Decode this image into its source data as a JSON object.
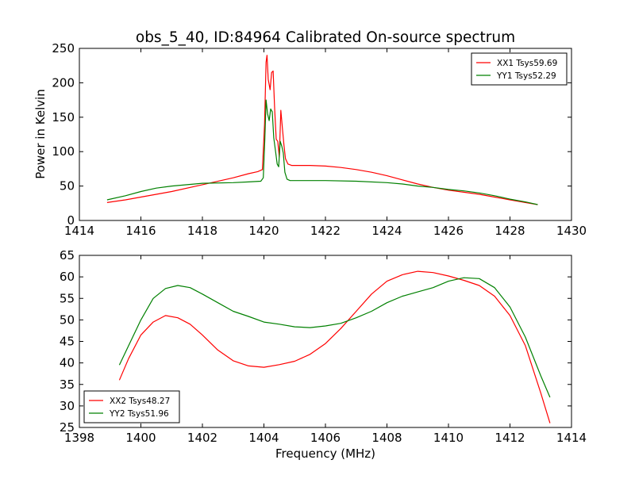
{
  "figure": {
    "title": "obs_5_40, ID:84964 Calibrated On-source spectrum",
    "xlabel": "Frequency (MHz)"
  },
  "chart_data": [
    {
      "type": "line",
      "ylabel": "Power in Kelvin",
      "xlim": [
        1414,
        1430
      ],
      "ylim": [
        0,
        250
      ],
      "xticks": [
        "1414",
        "1416",
        "1418",
        "1420",
        "1422",
        "1424",
        "1426",
        "1428",
        "1430"
      ],
      "yticks": [
        "0",
        "50",
        "100",
        "150",
        "200",
        "250"
      ],
      "legend_position": "top-right",
      "series": [
        {
          "name": "XX1 Tsys59.69",
          "color": "#ff0000",
          "points": [
            [
              1414.9,
              26
            ],
            [
              1415.5,
              30
            ],
            [
              1416,
              34
            ],
            [
              1417,
              42
            ],
            [
              1418,
              52
            ],
            [
              1419,
              62
            ],
            [
              1419.5,
              68
            ],
            [
              1419.8,
              71
            ],
            [
              1419.95,
              74
            ],
            [
              1420.02,
              140
            ],
            [
              1420.07,
              230
            ],
            [
              1420.1,
              240
            ],
            [
              1420.14,
              205
            ],
            [
              1420.2,
              190
            ],
            [
              1420.25,
              215
            ],
            [
              1420.3,
              217
            ],
            [
              1420.35,
              160
            ],
            [
              1420.4,
              118
            ],
            [
              1420.45,
              115
            ],
            [
              1420.5,
              92
            ],
            [
              1420.55,
              160
            ],
            [
              1420.6,
              135
            ],
            [
              1420.65,
              110
            ],
            [
              1420.7,
              90
            ],
            [
              1420.78,
              82
            ],
            [
              1420.9,
              80
            ],
            [
              1421.5,
              80
            ],
            [
              1422,
              79
            ],
            [
              1422.5,
              77
            ],
            [
              1423,
              74
            ],
            [
              1423.5,
              70
            ],
            [
              1424,
              65
            ],
            [
              1424.5,
              59
            ],
            [
              1425,
              53
            ],
            [
              1425.5,
              48
            ],
            [
              1426,
              44
            ],
            [
              1426.5,
              41
            ],
            [
              1427,
              38
            ],
            [
              1427.5,
              34
            ],
            [
              1428,
              30
            ],
            [
              1428.5,
              26
            ],
            [
              1428.9,
              23
            ]
          ]
        },
        {
          "name": "YY1 Tsys52.29",
          "color": "#008000",
          "points": [
            [
              1414.9,
              30
            ],
            [
              1415.5,
              36
            ],
            [
              1416,
              42
            ],
            [
              1416.5,
              47
            ],
            [
              1417,
              50
            ],
            [
              1417.5,
              52
            ],
            [
              1418,
              54
            ],
            [
              1419,
              55
            ],
            [
              1419.5,
              56
            ],
            [
              1419.9,
              57
            ],
            [
              1419.98,
              62
            ],
            [
              1420.03,
              120
            ],
            [
              1420.07,
              175
            ],
            [
              1420.12,
              155
            ],
            [
              1420.17,
              145
            ],
            [
              1420.22,
              162
            ],
            [
              1420.27,
              158
            ],
            [
              1420.32,
              120
            ],
            [
              1420.38,
              100
            ],
            [
              1420.43,
              82
            ],
            [
              1420.48,
              78
            ],
            [
              1420.53,
              115
            ],
            [
              1420.58,
              108
            ],
            [
              1420.63,
              98
            ],
            [
              1420.68,
              70
            ],
            [
              1420.75,
              60
            ],
            [
              1420.85,
              58
            ],
            [
              1421.5,
              58
            ],
            [
              1422,
              58
            ],
            [
              1423,
              57
            ],
            [
              1424,
              55
            ],
            [
              1424.5,
              53
            ],
            [
              1425,
              50
            ],
            [
              1425.5,
              48
            ],
            [
              1426,
              45
            ],
            [
              1426.5,
              43
            ],
            [
              1427,
              40
            ],
            [
              1427.5,
              36
            ],
            [
              1428,
              31
            ],
            [
              1428.5,
              27
            ],
            [
              1428.9,
              23
            ]
          ]
        }
      ]
    },
    {
      "type": "line",
      "ylabel": "",
      "xlim": [
        1398,
        1414
      ],
      "ylim": [
        25,
        65
      ],
      "xticks": [
        "1398",
        "1400",
        "1402",
        "1404",
        "1406",
        "1408",
        "1410",
        "1412",
        "1414"
      ],
      "yticks": [
        "25",
        "30",
        "35",
        "40",
        "45",
        "50",
        "55",
        "60",
        "65"
      ],
      "legend_position": "bottom-left",
      "series": [
        {
          "name": "XX2 Tsys48.27",
          "color": "#ff0000",
          "points": [
            [
              1399.3,
              36
            ],
            [
              1399.6,
              41
            ],
            [
              1400,
              46.5
            ],
            [
              1400.4,
              49.5
            ],
            [
              1400.8,
              51
            ],
            [
              1401.2,
              50.5
            ],
            [
              1401.6,
              49
            ],
            [
              1402,
              46.5
            ],
            [
              1402.5,
              43
            ],
            [
              1403,
              40.5
            ],
            [
              1403.5,
              39.3
            ],
            [
              1404,
              39
            ],
            [
              1404.5,
              39.6
            ],
            [
              1405,
              40.4
            ],
            [
              1405.5,
              42
            ],
            [
              1406,
              44.5
            ],
            [
              1406.5,
              48
            ],
            [
              1407,
              52
            ],
            [
              1407.5,
              56
            ],
            [
              1408,
              59
            ],
            [
              1408.5,
              60.5
            ],
            [
              1409,
              61.3
            ],
            [
              1409.5,
              61
            ],
            [
              1410,
              60.2
            ],
            [
              1410.5,
              59.2
            ],
            [
              1411,
              58
            ],
            [
              1411.5,
              55.5
            ],
            [
              1412,
              51
            ],
            [
              1412.5,
              44
            ],
            [
              1413,
              33
            ],
            [
              1413.3,
              26
            ]
          ]
        },
        {
          "name": "YY2 Tsys51.96",
          "color": "#008000",
          "points": [
            [
              1399.3,
              39.5
            ],
            [
              1399.6,
              44
            ],
            [
              1400,
              50
            ],
            [
              1400.4,
              55
            ],
            [
              1400.8,
              57.3
            ],
            [
              1401.2,
              58
            ],
            [
              1401.6,
              57.5
            ],
            [
              1402,
              56
            ],
            [
              1402.5,
              54
            ],
            [
              1403,
              52
            ],
            [
              1403.5,
              50.8
            ],
            [
              1404,
              49.5
            ],
            [
              1404.5,
              49
            ],
            [
              1405,
              48.4
            ],
            [
              1405.5,
              48.2
            ],
            [
              1406,
              48.6
            ],
            [
              1406.5,
              49.2
            ],
            [
              1407,
              50.5
            ],
            [
              1407.5,
              52
            ],
            [
              1408,
              54
            ],
            [
              1408.5,
              55.5
            ],
            [
              1409,
              56.5
            ],
            [
              1409.5,
              57.5
            ],
            [
              1410,
              59
            ],
            [
              1410.5,
              59.8
            ],
            [
              1411,
              59.6
            ],
            [
              1411.5,
              57.5
            ],
            [
              1412,
              53
            ],
            [
              1412.5,
              46
            ],
            [
              1413,
              37
            ],
            [
              1413.3,
              32
            ]
          ]
        }
      ]
    }
  ]
}
